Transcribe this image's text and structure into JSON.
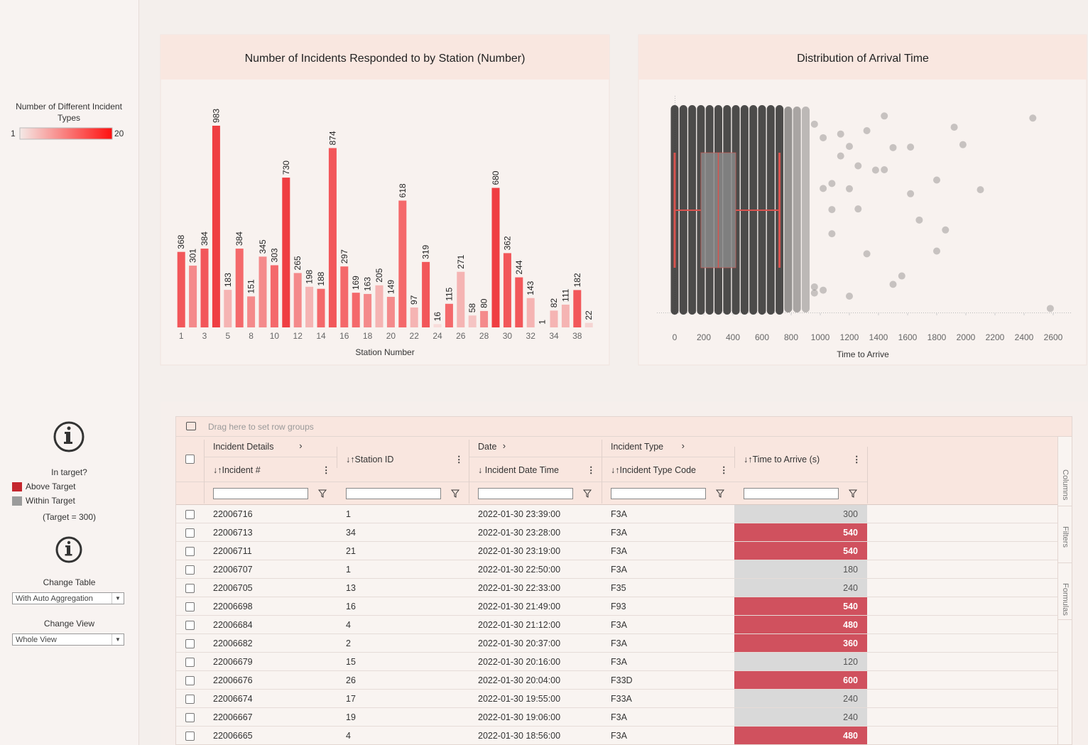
{
  "sidebar": {
    "legend": {
      "title": "Number of Different Incident Types",
      "min": 1,
      "max": 20,
      "colors": [
        "#f4e9e6",
        "#ff1010"
      ]
    },
    "in_target_title": "In target?",
    "above": {
      "label": "Above Target",
      "color": "#c4262e"
    },
    "within": {
      "label": "Within Target",
      "color": "#9b9b9b"
    },
    "target": 300,
    "target_label": "(Target = 300)",
    "change_table": "Change Table",
    "table_option": "With Auto Aggregation",
    "change_view": "Change View",
    "view_option": "Whole View"
  },
  "chart_data": [
    {
      "type": "bar",
      "title": "Number of Incidents Responded to by Station (Number)",
      "x_label": "Station Number",
      "categories": [
        "1",
        null,
        "3",
        null,
        "5",
        null,
        "8",
        null,
        "10",
        null,
        "12",
        null,
        "14",
        null,
        "16",
        null,
        "18",
        null,
        "20",
        null,
        "22",
        null,
        "24",
        null,
        "26",
        null,
        "28",
        null,
        "30",
        null,
        "32",
        null,
        "34",
        null,
        "38",
        null
      ],
      "values": [
        368,
        301,
        384,
        983,
        183,
        384,
        151,
        345,
        303,
        730,
        265,
        198,
        188,
        874,
        297,
        169,
        163,
        205,
        149,
        618,
        97,
        319,
        16,
        115,
        271,
        58,
        80,
        680,
        362,
        244,
        143,
        1,
        82,
        111,
        182,
        22
      ],
      "colors": [
        "#f2575a",
        "#f48a8b",
        "#f2575a",
        "#ef3e42",
        "#f5b4b3",
        "#f4696b",
        "#f48a8b",
        "#f48a8b",
        "#f4696b",
        "#ef3e42",
        "#f48a8b",
        "#f5b4b3",
        "#f4696b",
        "#f2575a",
        "#f4696b",
        "#f4696b",
        "#f48a8b",
        "#f5b4b3",
        "#f48a8b",
        "#f4696b",
        "#f5b4b3",
        "#f2575a",
        "#f7dcda",
        "#f4696b",
        "#f5b4b3",
        "#f5c4c3",
        "#f48a8b",
        "#ef3e42",
        "#f2575a",
        "#f2575a",
        "#f5b4b3",
        "#f7e8e6",
        "#f5b4b3",
        "#f5b4b3",
        "#f2575a",
        "#f5d4d2"
      ]
    },
    {
      "type": "box_scatter",
      "title": "Distribution of Arrival Time",
      "x_label": "Time to Arrive",
      "xlim": [
        0,
        2600
      ],
      "xticks": [
        0,
        200,
        400,
        600,
        800,
        1000,
        1200,
        1400,
        1600,
        1800,
        2000,
        2200,
        2400,
        2600
      ],
      "columns": [
        0,
        60,
        120,
        180,
        240,
        300,
        360,
        420,
        480,
        540,
        600,
        660,
        720,
        780,
        840,
        900
      ],
      "points": [
        960,
        960,
        960,
        1020,
        1020,
        1020,
        1080,
        1080,
        1080,
        1140,
        1140,
        1200,
        1200,
        1200,
        1260,
        1260,
        1320,
        1320,
        1380,
        1440,
        1440,
        1500,
        1500,
        1560,
        1620,
        1620,
        1680,
        1800,
        1800,
        1860,
        1920,
        1980,
        2100,
        2460,
        2580
      ],
      "box": {
        "min": 0,
        "q1": 180,
        "median": 300,
        "q3": 420,
        "max": 720
      },
      "point_color": "#333333",
      "box_color": "#888888",
      "whisker_color": "#d9534f"
    }
  ],
  "table": {
    "drop_hint": "Drag here to set row groups",
    "groups": [
      "Incident Details",
      "Date",
      "Incident Type"
    ],
    "columns": [
      "↓↑Incident #",
      "↓↑Station ID",
      "↓ Incident Date Time",
      "↓↑Incident Type Code",
      "↓↑Time to Arrive (s)"
    ],
    "rows": [
      [
        "22006716",
        1,
        "2022-01-30 23:39:00",
        "F3A",
        300
      ],
      [
        "22006713",
        34,
        "2022-01-30 23:28:00",
        "F3A",
        540
      ],
      [
        "22006711",
        21,
        "2022-01-30 23:19:00",
        "F3A",
        540
      ],
      [
        "22006707",
        1,
        "2022-01-30 22:50:00",
        "F3A",
        180
      ],
      [
        "22006705",
        13,
        "2022-01-30 22:33:00",
        "F35",
        240
      ],
      [
        "22006698",
        16,
        "2022-01-30 21:49:00",
        "F93",
        540
      ],
      [
        "22006684",
        4,
        "2022-01-30 21:12:00",
        "F3A",
        480
      ],
      [
        "22006682",
        2,
        "2022-01-30 20:37:00",
        "F3A",
        360
      ],
      [
        "22006679",
        15,
        "2022-01-30 20:16:00",
        "F3A",
        120
      ],
      [
        "22006676",
        26,
        "2022-01-30 20:04:00",
        "F33D",
        600
      ],
      [
        "22006674",
        17,
        "2022-01-30 19:55:00",
        "F33A",
        240
      ],
      [
        "22006667",
        19,
        "2022-01-30 19:06:00",
        "F3A",
        240
      ],
      [
        "22006665",
        4,
        "2022-01-30 18:56:00",
        "F3A",
        480
      ]
    ],
    "above_color": "#d0515e",
    "within_color": "#d9d9d9",
    "side_tabs": [
      "Columns",
      "Filters",
      "Formulas"
    ]
  }
}
